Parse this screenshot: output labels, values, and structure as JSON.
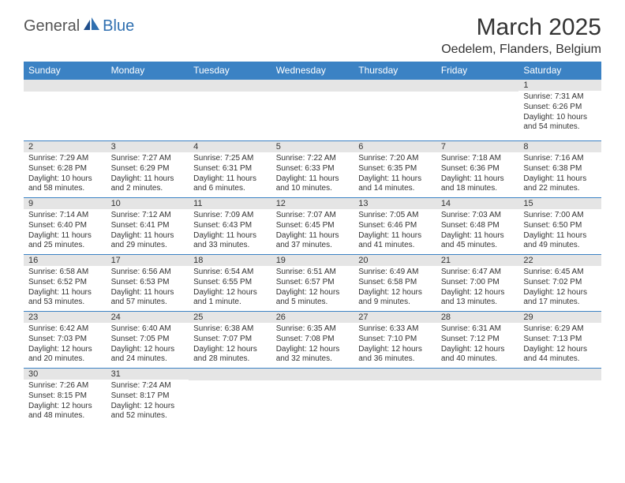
{
  "logo": {
    "text1": "General",
    "text2": "Blue"
  },
  "title": "March 2025",
  "subtitle": "Oedelem, Flanders, Belgium",
  "day_headers": [
    "Sunday",
    "Monday",
    "Tuesday",
    "Wednesday",
    "Thursday",
    "Friday",
    "Saturday"
  ],
  "colors": {
    "header_bg": "#3b82c4",
    "header_text": "#ffffff",
    "daynum_bg": "#e5e5e5",
    "border": "#3b82c4",
    "logo_blue": "#2f6fb0"
  },
  "weeks": [
    [
      null,
      null,
      null,
      null,
      null,
      null,
      {
        "n": "1",
        "sunrise": "Sunrise: 7:31 AM",
        "sunset": "Sunset: 6:26 PM",
        "daylight": "Daylight: 10 hours and 54 minutes."
      }
    ],
    [
      {
        "n": "2",
        "sunrise": "Sunrise: 7:29 AM",
        "sunset": "Sunset: 6:28 PM",
        "daylight": "Daylight: 10 hours and 58 minutes."
      },
      {
        "n": "3",
        "sunrise": "Sunrise: 7:27 AM",
        "sunset": "Sunset: 6:29 PM",
        "daylight": "Daylight: 11 hours and 2 minutes."
      },
      {
        "n": "4",
        "sunrise": "Sunrise: 7:25 AM",
        "sunset": "Sunset: 6:31 PM",
        "daylight": "Daylight: 11 hours and 6 minutes."
      },
      {
        "n": "5",
        "sunrise": "Sunrise: 7:22 AM",
        "sunset": "Sunset: 6:33 PM",
        "daylight": "Daylight: 11 hours and 10 minutes."
      },
      {
        "n": "6",
        "sunrise": "Sunrise: 7:20 AM",
        "sunset": "Sunset: 6:35 PM",
        "daylight": "Daylight: 11 hours and 14 minutes."
      },
      {
        "n": "7",
        "sunrise": "Sunrise: 7:18 AM",
        "sunset": "Sunset: 6:36 PM",
        "daylight": "Daylight: 11 hours and 18 minutes."
      },
      {
        "n": "8",
        "sunrise": "Sunrise: 7:16 AM",
        "sunset": "Sunset: 6:38 PM",
        "daylight": "Daylight: 11 hours and 22 minutes."
      }
    ],
    [
      {
        "n": "9",
        "sunrise": "Sunrise: 7:14 AM",
        "sunset": "Sunset: 6:40 PM",
        "daylight": "Daylight: 11 hours and 25 minutes."
      },
      {
        "n": "10",
        "sunrise": "Sunrise: 7:12 AM",
        "sunset": "Sunset: 6:41 PM",
        "daylight": "Daylight: 11 hours and 29 minutes."
      },
      {
        "n": "11",
        "sunrise": "Sunrise: 7:09 AM",
        "sunset": "Sunset: 6:43 PM",
        "daylight": "Daylight: 11 hours and 33 minutes."
      },
      {
        "n": "12",
        "sunrise": "Sunrise: 7:07 AM",
        "sunset": "Sunset: 6:45 PM",
        "daylight": "Daylight: 11 hours and 37 minutes."
      },
      {
        "n": "13",
        "sunrise": "Sunrise: 7:05 AM",
        "sunset": "Sunset: 6:46 PM",
        "daylight": "Daylight: 11 hours and 41 minutes."
      },
      {
        "n": "14",
        "sunrise": "Sunrise: 7:03 AM",
        "sunset": "Sunset: 6:48 PM",
        "daylight": "Daylight: 11 hours and 45 minutes."
      },
      {
        "n": "15",
        "sunrise": "Sunrise: 7:00 AM",
        "sunset": "Sunset: 6:50 PM",
        "daylight": "Daylight: 11 hours and 49 minutes."
      }
    ],
    [
      {
        "n": "16",
        "sunrise": "Sunrise: 6:58 AM",
        "sunset": "Sunset: 6:52 PM",
        "daylight": "Daylight: 11 hours and 53 minutes."
      },
      {
        "n": "17",
        "sunrise": "Sunrise: 6:56 AM",
        "sunset": "Sunset: 6:53 PM",
        "daylight": "Daylight: 11 hours and 57 minutes."
      },
      {
        "n": "18",
        "sunrise": "Sunrise: 6:54 AM",
        "sunset": "Sunset: 6:55 PM",
        "daylight": "Daylight: 12 hours and 1 minute."
      },
      {
        "n": "19",
        "sunrise": "Sunrise: 6:51 AM",
        "sunset": "Sunset: 6:57 PM",
        "daylight": "Daylight: 12 hours and 5 minutes."
      },
      {
        "n": "20",
        "sunrise": "Sunrise: 6:49 AM",
        "sunset": "Sunset: 6:58 PM",
        "daylight": "Daylight: 12 hours and 9 minutes."
      },
      {
        "n": "21",
        "sunrise": "Sunrise: 6:47 AM",
        "sunset": "Sunset: 7:00 PM",
        "daylight": "Daylight: 12 hours and 13 minutes."
      },
      {
        "n": "22",
        "sunrise": "Sunrise: 6:45 AM",
        "sunset": "Sunset: 7:02 PM",
        "daylight": "Daylight: 12 hours and 17 minutes."
      }
    ],
    [
      {
        "n": "23",
        "sunrise": "Sunrise: 6:42 AM",
        "sunset": "Sunset: 7:03 PM",
        "daylight": "Daylight: 12 hours and 20 minutes."
      },
      {
        "n": "24",
        "sunrise": "Sunrise: 6:40 AM",
        "sunset": "Sunset: 7:05 PM",
        "daylight": "Daylight: 12 hours and 24 minutes."
      },
      {
        "n": "25",
        "sunrise": "Sunrise: 6:38 AM",
        "sunset": "Sunset: 7:07 PM",
        "daylight": "Daylight: 12 hours and 28 minutes."
      },
      {
        "n": "26",
        "sunrise": "Sunrise: 6:35 AM",
        "sunset": "Sunset: 7:08 PM",
        "daylight": "Daylight: 12 hours and 32 minutes."
      },
      {
        "n": "27",
        "sunrise": "Sunrise: 6:33 AM",
        "sunset": "Sunset: 7:10 PM",
        "daylight": "Daylight: 12 hours and 36 minutes."
      },
      {
        "n": "28",
        "sunrise": "Sunrise: 6:31 AM",
        "sunset": "Sunset: 7:12 PM",
        "daylight": "Daylight: 12 hours and 40 minutes."
      },
      {
        "n": "29",
        "sunrise": "Sunrise: 6:29 AM",
        "sunset": "Sunset: 7:13 PM",
        "daylight": "Daylight: 12 hours and 44 minutes."
      }
    ],
    [
      {
        "n": "30",
        "sunrise": "Sunrise: 7:26 AM",
        "sunset": "Sunset: 8:15 PM",
        "daylight": "Daylight: 12 hours and 48 minutes."
      },
      {
        "n": "31",
        "sunrise": "Sunrise: 7:24 AM",
        "sunset": "Sunset: 8:17 PM",
        "daylight": "Daylight: 12 hours and 52 minutes."
      },
      null,
      null,
      null,
      null,
      null
    ]
  ]
}
